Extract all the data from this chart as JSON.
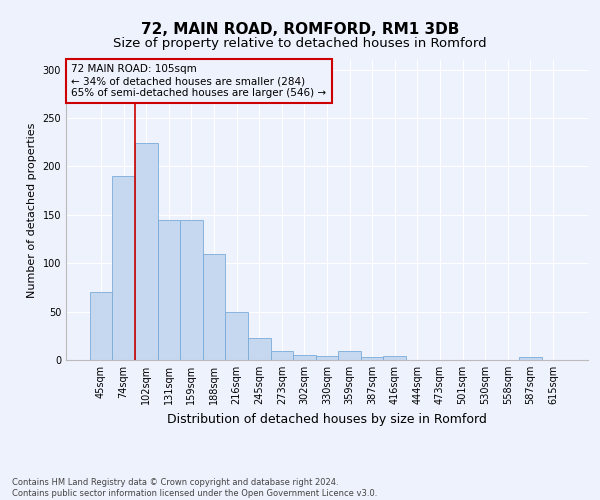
{
  "title": "72, MAIN ROAD, ROMFORD, RM1 3DB",
  "subtitle": "Size of property relative to detached houses in Romford",
  "xlabel": "Distribution of detached houses by size in Romford",
  "ylabel": "Number of detached properties",
  "categories": [
    "45sqm",
    "74sqm",
    "102sqm",
    "131sqm",
    "159sqm",
    "188sqm",
    "216sqm",
    "245sqm",
    "273sqm",
    "302sqm",
    "330sqm",
    "359sqm",
    "387sqm",
    "416sqm",
    "444sqm",
    "473sqm",
    "501sqm",
    "530sqm",
    "558sqm",
    "587sqm",
    "615sqm"
  ],
  "values": [
    70,
    190,
    224,
    145,
    145,
    110,
    50,
    23,
    9,
    5,
    4,
    9,
    3,
    4,
    0,
    0,
    0,
    0,
    0,
    3,
    0
  ],
  "bar_color": "#c5d8f0",
  "bar_edge_color": "#7aabda",
  "vline_color": "#cc0000",
  "box_edge_color": "#cc0000",
  "annotation_text": "72 MAIN ROAD: 105sqm\n← 34% of detached houses are smaller (284)\n65% of semi-detached houses are larger (546) →",
  "ylim": [
    0,
    310
  ],
  "yticks": [
    0,
    50,
    100,
    150,
    200,
    250,
    300
  ],
  "footer": "Contains HM Land Registry data © Crown copyright and database right 2024.\nContains public sector information licensed under the Open Government Licence v3.0.",
  "bg_color": "#eef2fc",
  "grid_color": "#ffffff",
  "title_fontsize": 11,
  "subtitle_fontsize": 9.5,
  "ylabel_fontsize": 8,
  "xlabel_fontsize": 9,
  "tick_fontsize": 7,
  "ann_fontsize": 7.5,
  "footer_fontsize": 6
}
